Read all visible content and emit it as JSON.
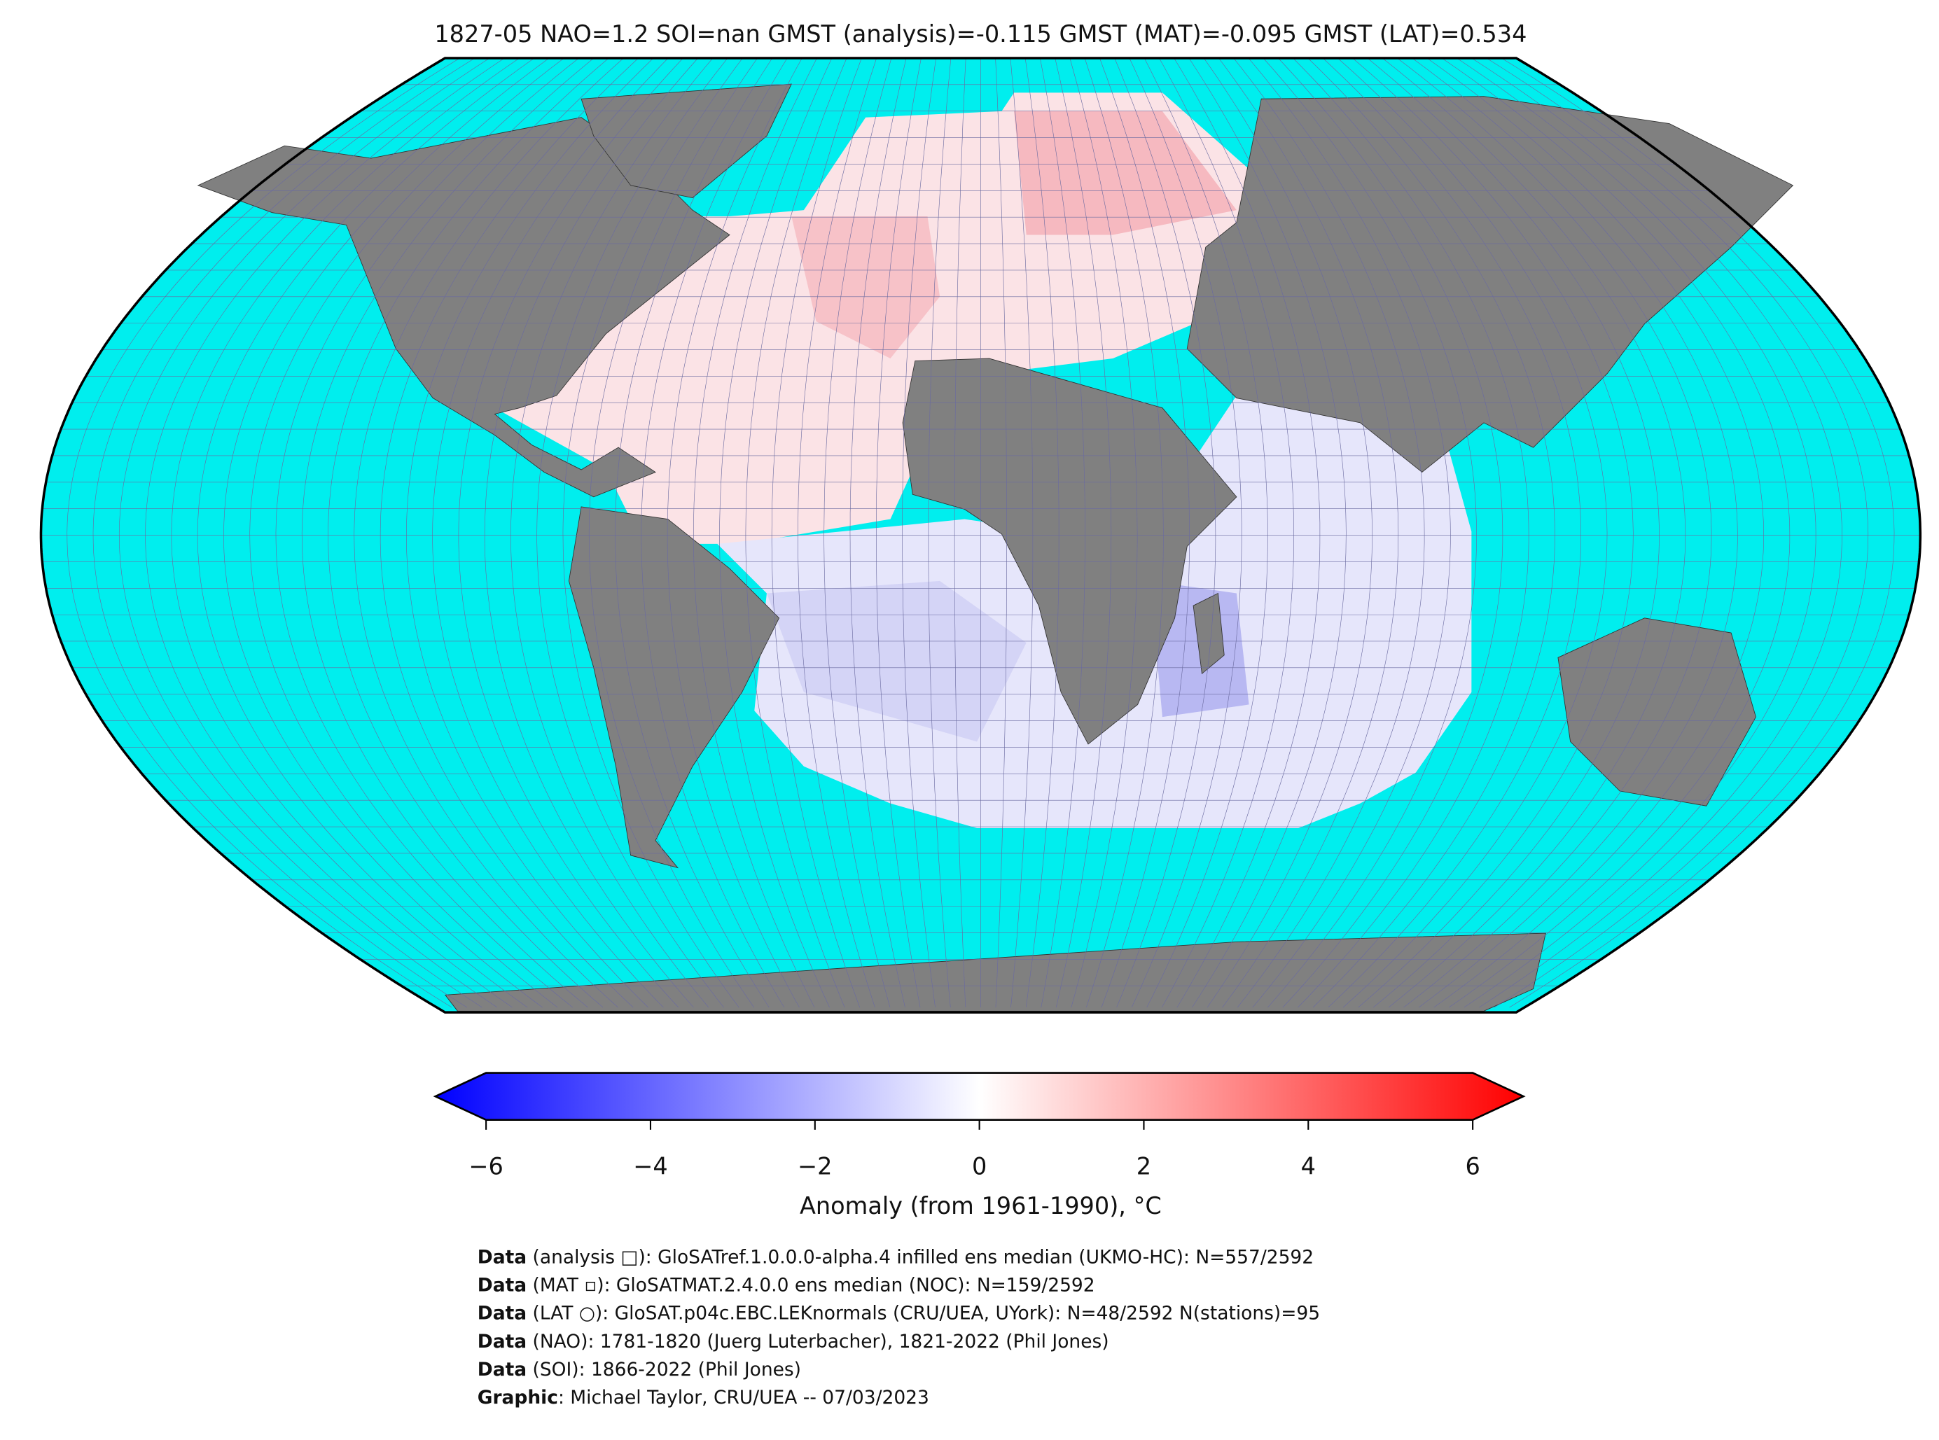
{
  "title": "1827-05 NAO=1.2 SOI=nan GMST (analysis)=-0.115 GMST (MAT)=-0.095 GMST (LAT)=0.534",
  "colorbar": {
    "label": "Anomaly (from 1961-1990), °C",
    "lim": [
      -6,
      6
    ],
    "ticks": [
      {
        "value": -6,
        "label": "−6"
      },
      {
        "value": -4,
        "label": "−4"
      },
      {
        "value": -2,
        "label": "−2"
      },
      0,
      2,
      4,
      6
    ]
  },
  "footer": [
    {
      "key": "Data",
      "text": " (analysis □): GloSATref.1.0.0.0-alpha.4 infilled ens median (UKMO-HC): N=557/2592"
    },
    {
      "key": "Data",
      "text": " (MAT ▫): GloSATMAT.2.4.0.0 ens median (NOC): N=159/2592"
    },
    {
      "key": "Data",
      "text": " (LAT ○): GloSAT.p04c.EBC.LEKnormals (CRU/UEA, UYork): N=48/2592 N(stations)=95"
    },
    {
      "key": "Data",
      "text": " (NAO): 1781-1820 (Juerg Luterbacher), 1821-2022 (Phil Jones)"
    },
    {
      "key": "Data",
      "text": " (SOI): 1866-2022 (Phil Jones)"
    },
    {
      "key": "Graphic",
      "text": ": Michael Taylor, CRU/UEA -- 07/03/2023"
    }
  ]
}
